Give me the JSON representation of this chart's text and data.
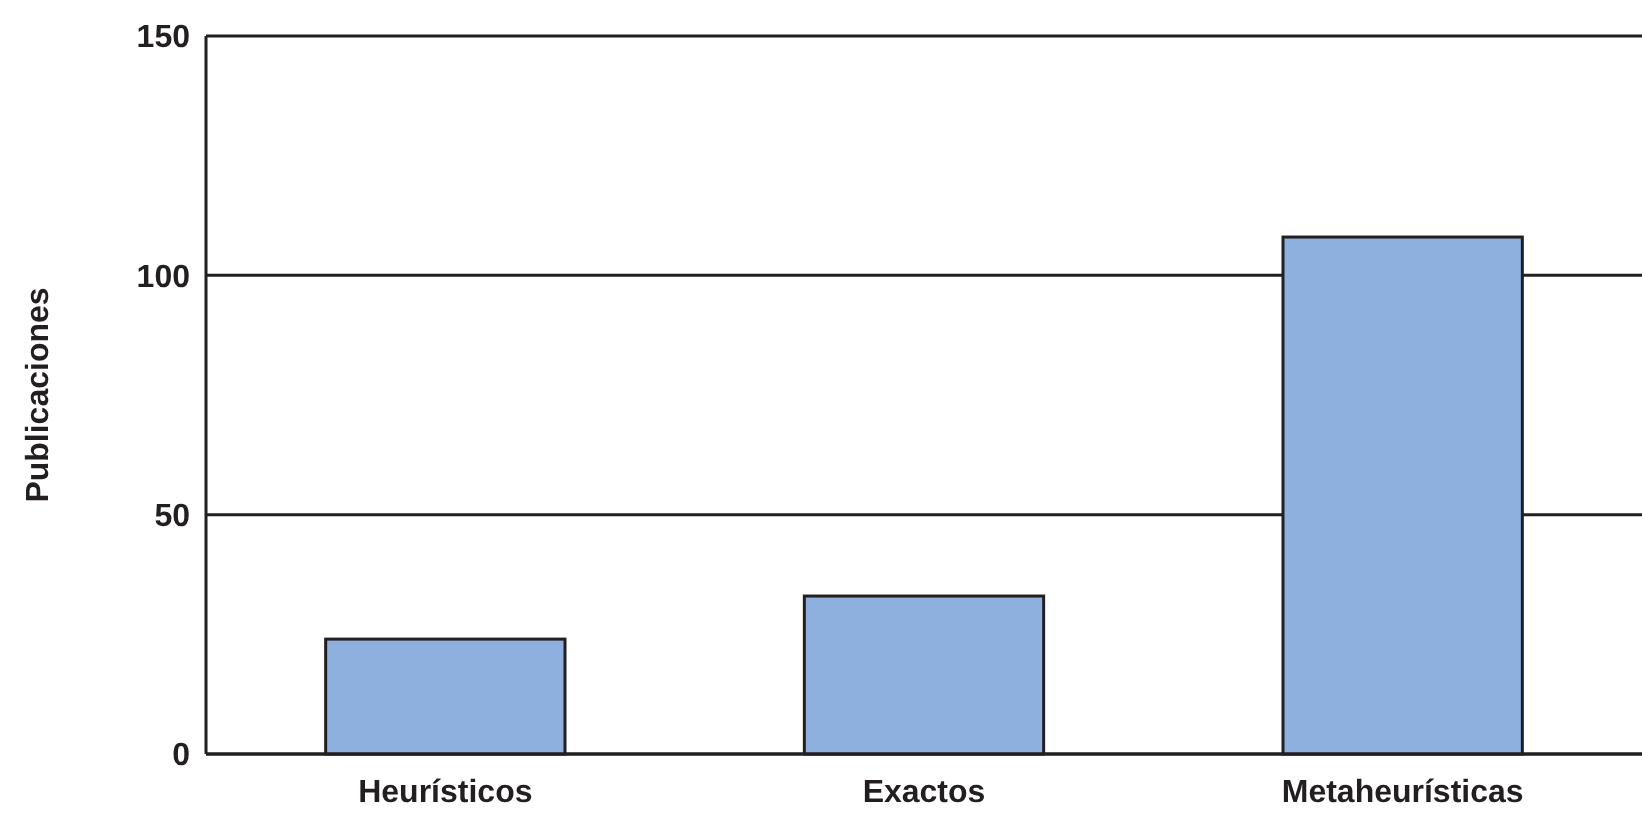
{
  "chart_data": {
    "type": "bar",
    "ylabel": "Publicaciones",
    "categories": [
      "Heurísticos",
      "Exactos",
      "Metaheurísticas"
    ],
    "values": [
      24,
      33,
      108
    ],
    "color": "#8db0df",
    "ylim": [
      0,
      150
    ],
    "yticks": [
      0,
      50,
      100,
      150
    ],
    "grid": "y"
  }
}
